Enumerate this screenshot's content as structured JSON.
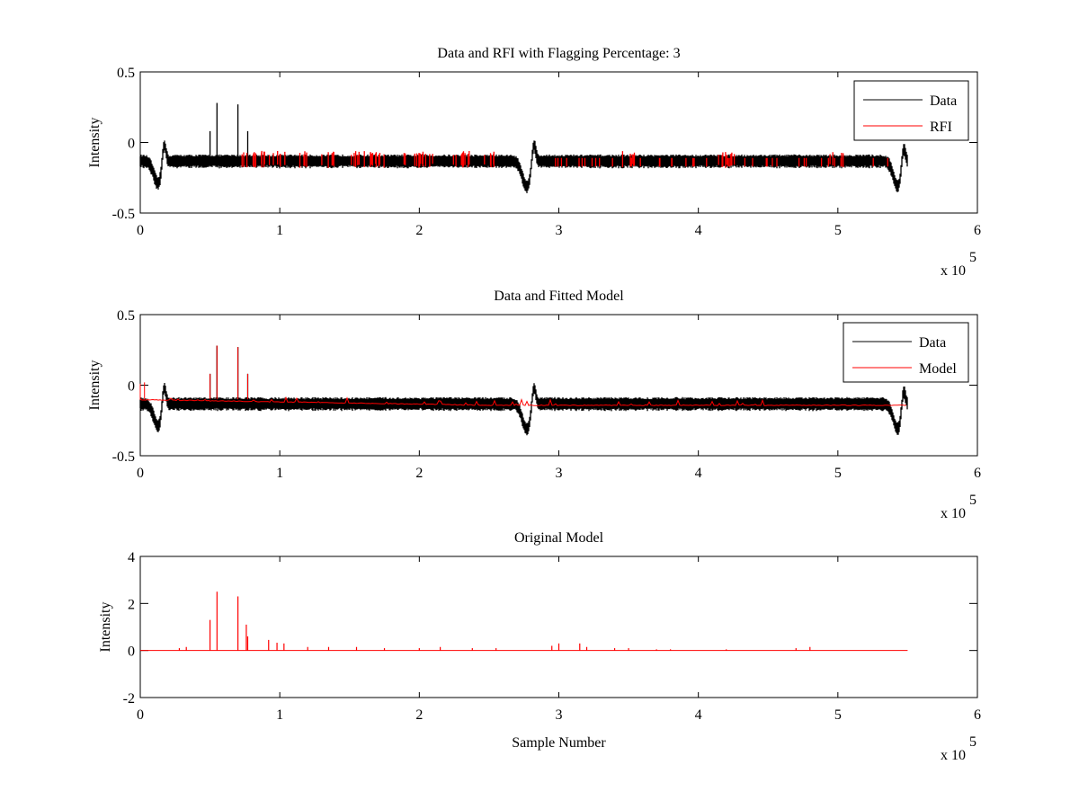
{
  "chart_data": [
    {
      "type": "line",
      "title": "Data and RFI with Flagging Percentage: 3",
      "xlabel": "",
      "ylabel": "Intensity",
      "xlim": [
        0,
        600000
      ],
      "ylim": [
        -0.5,
        0.5
      ],
      "xticks": [
        "0",
        "1",
        "2",
        "3",
        "4",
        "5",
        "6"
      ],
      "yticks": [
        "0.5",
        "0",
        "-0.5"
      ],
      "x_multiplier": "x 10",
      "x_multiplier_exp": "5",
      "legend": {
        "placement": "top-right",
        "entries": [
          {
            "name": "Data",
            "color": "#000000"
          },
          {
            "name": "RFI",
            "color": "#ff0000"
          }
        ]
      },
      "series": [
        {
          "name": "Data",
          "color": "#000000",
          "x_range": [
            0,
            550000
          ],
          "baseline": -0.13,
          "noise_band": [
            -0.17,
            -0.09
          ],
          "features": {
            "x": [
              13000,
              17000,
              277000,
              282000,
              543000,
              547000,
              550000
            ],
            "y": [
              -0.29,
              0.05,
              -0.31,
              0.03,
              -0.31,
              0.03,
              -0.15
            ]
          },
          "spikes": {
            "x": [
              50000,
              55000,
              70000,
              77000
            ],
            "y": [
              0.08,
              0.28,
              0.27,
              0.08
            ]
          }
        },
        {
          "name": "RFI",
          "color": "#ff0000",
          "flagged_regions_x": [
            77000,
            92000,
            98000,
            115000,
            135000,
            155000,
            170000,
            195000,
            200000,
            205000,
            230000,
            250000,
            350000,
            420000,
            500000
          ],
          "y_range": [
            -0.18,
            -0.07
          ]
        }
      ]
    },
    {
      "type": "line",
      "title": "Data and Fitted Model",
      "xlabel": "",
      "ylabel": "Intensity",
      "xlim": [
        0,
        600000
      ],
      "ylim": [
        -0.5,
        0.5
      ],
      "xticks": [
        "0",
        "1",
        "2",
        "3",
        "4",
        "5",
        "6"
      ],
      "yticks": [
        "0.5",
        "0",
        "-0.5"
      ],
      "x_multiplier": "x 10",
      "x_multiplier_exp": "5",
      "legend": {
        "placement": "top-right",
        "entries": [
          {
            "name": "Data",
            "color": "#000000"
          },
          {
            "name": "Model",
            "color": "#ff0000"
          }
        ]
      },
      "series": [
        {
          "name": "Data",
          "color": "#000000",
          "x_range": [
            0,
            550000
          ],
          "baseline": -0.13
        },
        {
          "name": "Model",
          "color": "#ff0000",
          "x_range": [
            0,
            550000
          ],
          "baseline_start": -0.1,
          "baseline_end": -0.14,
          "spikes": {
            "x": [
              3000,
              50000,
              55000,
              70000,
              77000
            ],
            "y": [
              0.02,
              0.08,
              0.28,
              0.27,
              0.08
            ]
          }
        }
      ]
    },
    {
      "type": "line",
      "title": "Original Model",
      "xlabel": "Sample Number",
      "ylabel": "Intensity",
      "xlim": [
        0,
        600000
      ],
      "ylim": [
        -2,
        4
      ],
      "xticks": [
        "0",
        "1",
        "2",
        "3",
        "4",
        "5",
        "6"
      ],
      "yticks": [
        "4",
        "2",
        "0",
        "-2"
      ],
      "x_multiplier": "x 10",
      "x_multiplier_exp": "5",
      "series": [
        {
          "name": "Model",
          "color": "#ff0000",
          "x_range": [
            0,
            550000
          ],
          "baseline": 0,
          "spikes": {
            "x": [
              28000,
              33000,
              50000,
              55000,
              70000,
              76000,
              77000,
              92000,
              98000,
              103000,
              120000,
              135000,
              155000,
              175000,
              200000,
              215000,
              238000,
              255000,
              295000,
              300000,
              315000,
              320000,
              340000,
              350000,
              370000,
              380000,
              420000,
              470000,
              480000
            ],
            "y": [
              0.1,
              0.15,
              1.3,
              2.5,
              2.3,
              1.1,
              0.6,
              0.45,
              0.33,
              0.3,
              0.15,
              0.15,
              0.15,
              0.1,
              0.1,
              0.15,
              0.1,
              0.1,
              0.2,
              0.3,
              0.3,
              0.15,
              0.1,
              0.1,
              0.05,
              0.05,
              0.05,
              0.1,
              0.15
            ]
          }
        }
      ]
    }
  ]
}
